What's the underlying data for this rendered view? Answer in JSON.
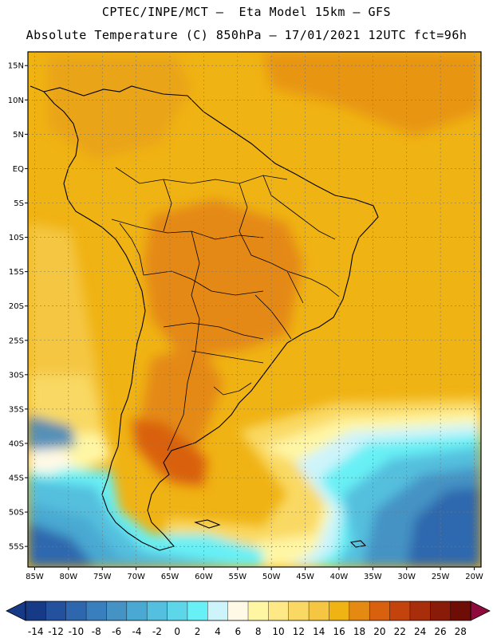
{
  "header": {
    "line1": "CPTEC/INPE/MCT –  Eta Model 15km – GFS",
    "line2": "Absolute Temperature (C) 850hPa – 17/01/2021 12UTC fct=96h"
  },
  "map": {
    "lat_labels": [
      "15N",
      "10N",
      "5N",
      "EQ",
      "5S",
      "10S",
      "15S",
      "20S",
      "25S",
      "30S",
      "35S",
      "40S",
      "45S",
      "50S",
      "55S"
    ],
    "lon_labels": [
      "85W",
      "80W",
      "75W",
      "70W",
      "65W",
      "60W",
      "55W",
      "50W",
      "45W",
      "40W",
      "35W",
      "30W",
      "25W",
      "20W"
    ],
    "extent": {
      "lon": [
        -86,
        -19
      ],
      "lat": [
        17,
        -58
      ]
    }
  },
  "colorbar": {
    "labels": [
      "-14",
      "-12",
      "-10",
      "-8",
      "-6",
      "-4",
      "-2",
      "0",
      "2",
      "4",
      "6",
      "8",
      "10",
      "12",
      "14",
      "16",
      "18",
      "20",
      "22",
      "24",
      "26",
      "28"
    ],
    "colors": [
      "#173a86",
      "#24519e",
      "#2f67ae",
      "#3a7fbd",
      "#4593c5",
      "#4aa9d2",
      "#54bfde",
      "#5dd6e9",
      "#67f0f5",
      "#cdf4fb",
      "#fff9e6",
      "#fff6a4",
      "#ffe987",
      "#f9d964",
      "#f4c642",
      "#f0b314",
      "#e48912",
      "#d9600f",
      "#c4430c",
      "#a82d0a",
      "#8a1b08",
      "#6e0d06"
    ],
    "under_color": "#173a86",
    "over_color": "#8f0a3c"
  }
}
